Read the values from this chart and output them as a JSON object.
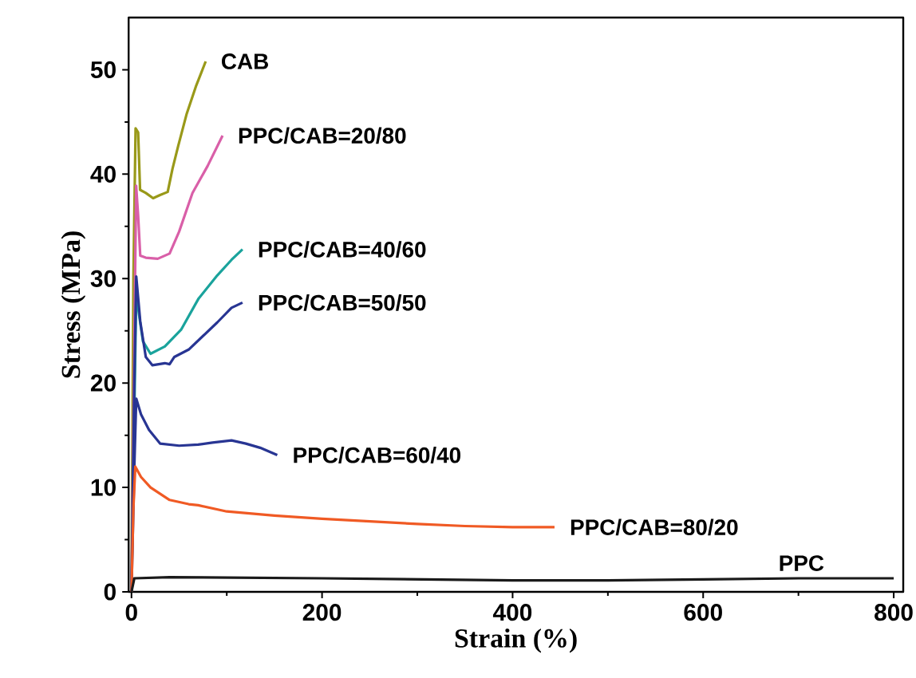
{
  "chart_data": {
    "type": "line",
    "xlabel": "Strain (%)",
    "ylabel": "Stress (MPa)",
    "xlim": [
      -3,
      810
    ],
    "ylim": [
      0,
      55
    ],
    "xticks": [
      0,
      200,
      400,
      600,
      800
    ],
    "yticks": [
      0,
      10,
      20,
      30,
      40,
      50
    ],
    "series": [
      {
        "name": "CAB",
        "color": "#999919",
        "x": [
          0,
          2,
          4.3,
          7,
          9,
          15,
          22.7,
          30,
          38,
          43,
          49,
          58,
          68,
          77.9
        ],
        "values": [
          0,
          30,
          44.4,
          44,
          38.5,
          38.2,
          37.7,
          38,
          38.3,
          40.5,
          42.7,
          45.8,
          48.5,
          50.8
        ]
      },
      {
        "name": "PPC/CAB=20/80",
        "color": "#d95fa8",
        "x": [
          0,
          2.5,
          4.9,
          7,
          9.2,
          15,
          27.6,
          40,
          50,
          64,
          80,
          95.6
        ],
        "values": [
          0,
          20,
          38.9,
          36,
          32.2,
          32,
          31.9,
          32.4,
          34.5,
          38.2,
          40.8,
          43.7
        ]
      },
      {
        "name": "PPC/CAB=40/60",
        "color": "#1aa39c",
        "x": [
          0,
          3,
          5,
          8,
          12,
          20,
          35,
          52,
          70.5,
          90,
          105,
          116.5
        ],
        "values": [
          0,
          null,
          28.5,
          26.5,
          24,
          22.8,
          23.5,
          25.1,
          28.1,
          30.3,
          31.8,
          32.8
        ]
      },
      {
        "name": "PPC/CAB=50/50",
        "color": "#283593",
        "x": [
          0,
          3,
          5,
          9.2,
          15,
          22,
          35,
          40,
          45,
          60,
          75,
          90,
          105,
          116.5
        ],
        "values": [
          0,
          20,
          30.2,
          25.9,
          22.5,
          21.7,
          21.9,
          21.8,
          22.5,
          23.2,
          24.5,
          25.8,
          27.2,
          27.7
        ]
      },
      {
        "name": "PPC/CAB=60/40",
        "color": "#283593",
        "x": [
          0,
          3,
          5,
          10,
          18.4,
          30,
          50,
          70,
          85,
          105,
          120,
          135,
          153
        ],
        "values": [
          0,
          12,
          18.5,
          17,
          15.5,
          14.2,
          14,
          14.1,
          14.3,
          14.5,
          14.2,
          13.8,
          13.1
        ]
      },
      {
        "name": "PPC/CAB=80/20",
        "color": "#f05a24",
        "x": [
          0,
          2,
          4,
          10,
          20,
          40,
          60,
          70,
          100,
          150,
          200,
          300,
          350,
          400,
          444
        ],
        "values": [
          0,
          8,
          12,
          11,
          10,
          8.8,
          8.4,
          8.3,
          7.7,
          7.3,
          7.0,
          6.5,
          6.3,
          6.2,
          6.2
        ]
      },
      {
        "name": "PPC",
        "color": "#1a1a1a",
        "x": [
          0,
          3,
          40,
          200,
          400,
          500,
          600,
          700,
          800
        ],
        "values": [
          0,
          1.3,
          1.4,
          1.3,
          1.1,
          1.1,
          1.2,
          1.3,
          1.3
        ]
      }
    ]
  }
}
